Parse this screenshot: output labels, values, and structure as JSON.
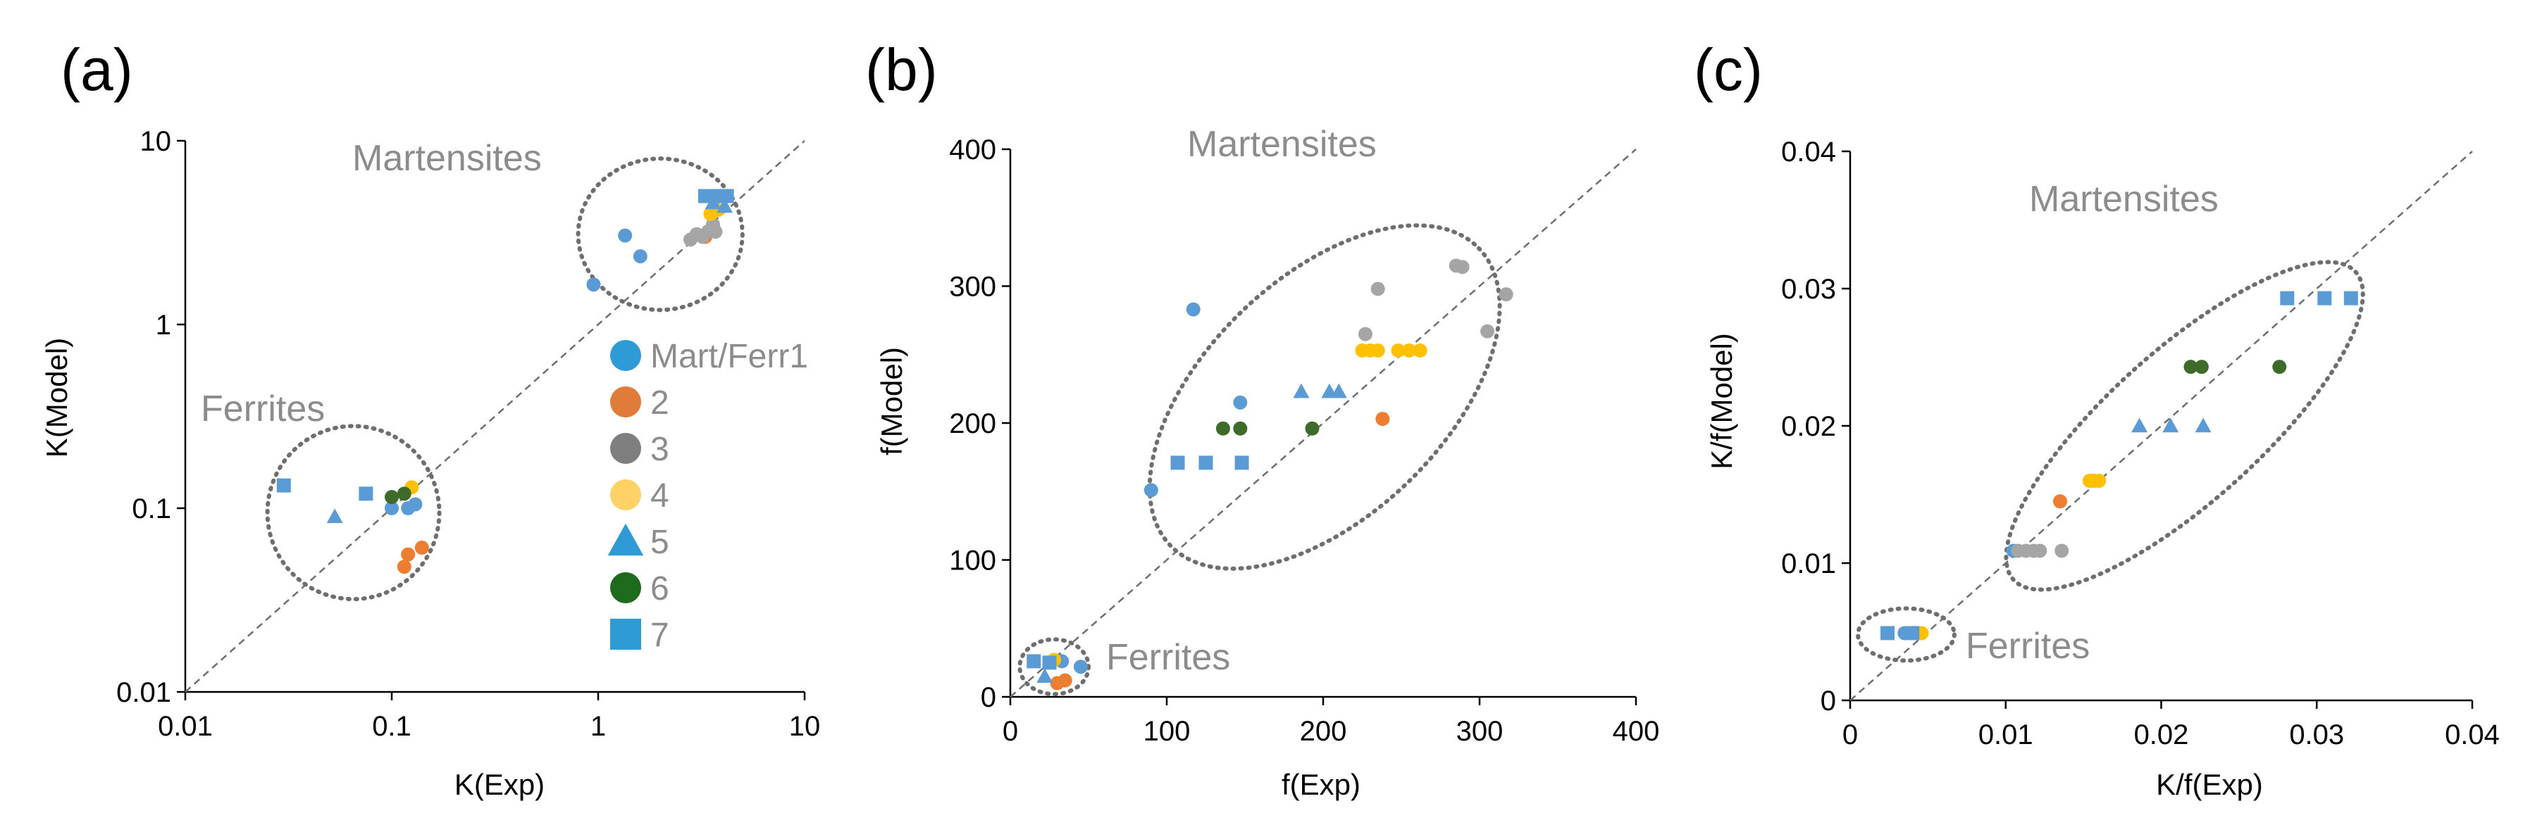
{
  "series_styles": [
    {
      "name": "Mart/Ferr1",
      "color": "#5b9bd5",
      "marker": "circle"
    },
    {
      "name": "2",
      "color": "#ed7d31",
      "marker": "circle"
    },
    {
      "name": "3",
      "color": "#a5a5a5",
      "marker": "circle"
    },
    {
      "name": "4",
      "color": "#ffc000",
      "marker": "circle"
    },
    {
      "name": "5",
      "color": "#5b9bd5",
      "marker": "triangle"
    },
    {
      "name": "6",
      "color": "#3e6b2a",
      "marker": "circle"
    },
    {
      "name": "7",
      "color": "#5b9bd5",
      "marker": "square"
    }
  ],
  "legend": {
    "entries": [
      "Mart/Ferr1",
      "2",
      "3",
      "4",
      "5",
      "6",
      "7"
    ],
    "colors": [
      "#2e9bd6",
      "#e07b39",
      "#7f7f7f",
      "#ffd166",
      "#2e9bd6",
      "#1e6b1e",
      "#2e9bd6"
    ],
    "markers": [
      "circle",
      "circle",
      "circle",
      "circle",
      "triangle",
      "circle",
      "square"
    ]
  },
  "chart_data": [
    {
      "type": "scatter",
      "panel_label": "(a)",
      "xlabel": "K(Exp)",
      "ylabel": "K(Model)",
      "scale": "log",
      "xlim": [
        0.01,
        10
      ],
      "ylim": [
        0.01,
        10
      ],
      "x_tick_labels": [
        "0.01",
        "0.1",
        "1",
        "10"
      ],
      "y_tick_labels": [
        "0.01",
        "0.1",
        "1",
        "10"
      ],
      "diagonal": true,
      "group_labels": [
        "Martensites",
        "Ferrites"
      ],
      "ellipses": [
        {
          "label": "Martensites",
          "center": [
            2.0,
            3.0
          ],
          "x_range": [
            0.8,
            5.0
          ],
          "y_range": [
            1.2,
            8.0
          ]
        },
        {
          "label": "Ferrites",
          "center": [
            0.065,
            0.1
          ],
          "x_range": [
            0.025,
            0.17
          ],
          "y_range": [
            0.032,
            0.28
          ]
        }
      ],
      "series": [
        {
          "name": "Mart/Ferr1",
          "points": [
            [
              0.95,
              1.65
            ],
            [
              1.35,
              3.05
            ],
            [
              1.6,
              2.35
            ],
            [
              0.1,
              0.1
            ],
            [
              0.12,
              0.1
            ],
            [
              0.13,
              0.105
            ]
          ]
        },
        {
          "name": "2",
          "points": [
            [
              3.3,
              3.0
            ],
            [
              0.115,
              0.048
            ],
            [
              0.12,
              0.056
            ],
            [
              0.14,
              0.061
            ]
          ]
        },
        {
          "name": "3",
          "points": [
            [
              2.8,
              2.9
            ],
            [
              3.0,
              3.1
            ],
            [
              3.2,
              3.0
            ],
            [
              3.4,
              3.2
            ],
            [
              3.6,
              3.5
            ],
            [
              3.7,
              3.2
            ]
          ]
        },
        {
          "name": "4",
          "points": [
            [
              3.5,
              4.0
            ],
            [
              3.8,
              4.2
            ],
            [
              0.125,
              0.13
            ]
          ]
        },
        {
          "name": "5",
          "points": [
            [
              3.6,
              4.6
            ],
            [
              4.1,
              4.4
            ],
            [
              0.053,
              0.09
            ]
          ]
        },
        {
          "name": "6",
          "points": [
            [
              0.1,
              0.115
            ],
            [
              0.115,
              0.12
            ]
          ]
        },
        {
          "name": "7",
          "points": [
            [
              3.3,
              5.0
            ],
            [
              3.8,
              5.0
            ],
            [
              4.2,
              5.0
            ],
            [
              0.03,
              0.133
            ],
            [
              0.075,
              0.12
            ]
          ]
        }
      ]
    },
    {
      "type": "scatter",
      "panel_label": "(b)",
      "xlabel": "f(Exp)",
      "ylabel": "f(Model)",
      "scale": "linear",
      "xlim": [
        0,
        400
      ],
      "ylim": [
        0,
        400
      ],
      "x_tick_labels": [
        "0",
        "100",
        "200",
        "300",
        "400"
      ],
      "y_tick_labels": [
        "0",
        "100",
        "200",
        "300",
        "400"
      ],
      "diagonal": true,
      "group_labels": [
        "Martensites",
        "Ferrites"
      ],
      "ellipses": [
        {
          "label": "Martensites",
          "center": [
            201,
            219
          ],
          "rx": 137,
          "ry": 87,
          "rotate_deg": -44
        },
        {
          "label": "Ferrites",
          "center": [
            28,
            22
          ],
          "rx": 22,
          "ry": 20,
          "rotate_deg": 0
        }
      ],
      "series": [
        {
          "name": "Mart/Ferr1",
          "points": [
            [
              90,
              151
            ],
            [
              117,
              283
            ],
            [
              147,
              215
            ],
            [
              45,
              22
            ],
            [
              33,
              26
            ]
          ]
        },
        {
          "name": "2",
          "points": [
            [
              238,
              203
            ],
            [
              35,
              12
            ],
            [
              30,
              10
            ]
          ]
        },
        {
          "name": "3",
          "points": [
            [
              227,
              265
            ],
            [
              235,
              298
            ],
            [
              285,
              315
            ],
            [
              289,
              314
            ],
            [
              305,
              267
            ],
            [
              317,
              294
            ]
          ]
        },
        {
          "name": "4",
          "points": [
            [
              225,
              253
            ],
            [
              230,
              253
            ],
            [
              235,
              253
            ],
            [
              248,
              253
            ],
            [
              255,
              253
            ],
            [
              262,
              253
            ],
            [
              28,
              27
            ]
          ]
        },
        {
          "name": "5",
          "points": [
            [
              186,
              223
            ],
            [
              204,
              223
            ],
            [
              210,
              223
            ],
            [
              22,
              15
            ]
          ]
        },
        {
          "name": "6",
          "points": [
            [
              136,
              196
            ],
            [
              147,
              196
            ],
            [
              193,
              196
            ]
          ]
        },
        {
          "name": "7",
          "points": [
            [
              107,
              171
            ],
            [
              125,
              171
            ],
            [
              148,
              171
            ],
            [
              15,
              26
            ],
            [
              25,
              25
            ]
          ]
        }
      ]
    },
    {
      "type": "scatter",
      "panel_label": "(c)",
      "xlabel": "K/f(Exp)",
      "ylabel": "K/f(Model)",
      "scale": "linear",
      "xlim": [
        0,
        0.04
      ],
      "ylim": [
        0,
        0.04
      ],
      "x_tick_labels": [
        "0",
        "0.01",
        "0.02",
        "0.03",
        "0.04"
      ],
      "y_tick_labels": [
        "0",
        "0.01",
        "0.02",
        "0.03",
        "0.04"
      ],
      "diagonal": true,
      "group_labels": [
        "Martensites",
        "Ferrites"
      ],
      "ellipses": [
        {
          "label": "Martensites",
          "center": [
            0.0215,
            0.02
          ],
          "rx": 0.0148,
          "ry": 0.0055,
          "rotate_deg": -42
        },
        {
          "label": "Ferrites",
          "center": [
            0.0036,
            0.0048
          ],
          "rx": 0.0031,
          "ry": 0.0019,
          "rotate_deg": 0
        }
      ],
      "series": [
        {
          "name": "Mart/Ferr1",
          "points": [
            [
              0.0105,
              0.0109
            ],
            [
              0.0035,
              0.0049
            ]
          ]
        },
        {
          "name": "2",
          "points": [
            [
              0.0135,
              0.0145
            ]
          ]
        },
        {
          "name": "3",
          "points": [
            [
              0.0108,
              0.0109
            ],
            [
              0.0113,
              0.0109
            ],
            [
              0.0118,
              0.0109
            ],
            [
              0.0122,
              0.0109
            ],
            [
              0.0136,
              0.0109
            ]
          ]
        },
        {
          "name": "4",
          "points": [
            [
              0.0154,
              0.016
            ],
            [
              0.0157,
              0.016
            ],
            [
              0.016,
              0.016
            ],
            [
              0.0046,
              0.0049
            ]
          ]
        },
        {
          "name": "5",
          "points": [
            [
              0.0186,
              0.02
            ],
            [
              0.0206,
              0.02
            ],
            [
              0.0227,
              0.02
            ]
          ]
        },
        {
          "name": "6",
          "points": [
            [
              0.0219,
              0.0243
            ],
            [
              0.0226,
              0.0243
            ],
            [
              0.0276,
              0.0243
            ]
          ]
        },
        {
          "name": "7",
          "points": [
            [
              0.0281,
              0.0293
            ],
            [
              0.0305,
              0.0293
            ],
            [
              0.0322,
              0.0293
            ],
            [
              0.0024,
              0.0049
            ],
            [
              0.004,
              0.0049
            ]
          ]
        }
      ]
    }
  ]
}
